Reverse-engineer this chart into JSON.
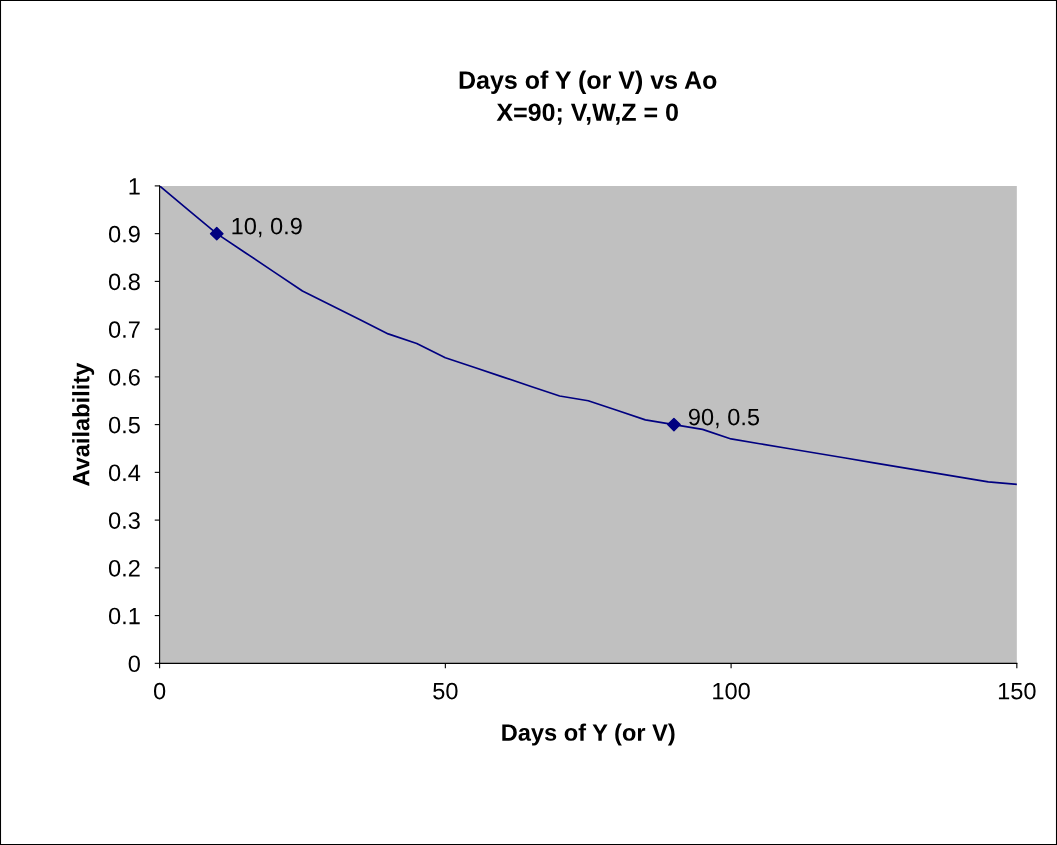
{
  "chart_data": {
    "type": "line",
    "title": "Days of Y (or V) vs Ao",
    "subtitle": "X=90; V,W,Z = 0",
    "xlabel": "Days of Y (or V)",
    "ylabel": "Availability",
    "series": [
      {
        "color": "#000080",
        "x": [
          0,
          5,
          10,
          15,
          20,
          25,
          30,
          35,
          40,
          45,
          50,
          55,
          60,
          65,
          70,
          75,
          80,
          85,
          90,
          95,
          100,
          105,
          110,
          115,
          120,
          125,
          130,
          135,
          140,
          145,
          150
        ],
        "values": [
          1,
          0.95,
          0.9,
          0.86,
          0.82,
          0.78,
          0.75,
          0.72,
          0.69,
          0.67,
          0.64,
          0.62,
          0.6,
          0.58,
          0.56,
          0.55,
          0.53,
          0.51,
          0.5,
          0.49,
          0.47,
          0.46,
          0.45,
          0.44,
          0.43,
          0.42,
          0.41,
          0.4,
          0.39,
          0.38,
          0.375
        ]
      },
      {
        "type": "scatter",
        "color": "#000080",
        "marker": "diamond",
        "x": [
          10,
          90
        ],
        "values": [
          0.9,
          0.5
        ]
      }
    ],
    "annotations": [
      {
        "text": "10, 0.9",
        "x": 10,
        "y": 0.9
      },
      {
        "text": "90, 0.5",
        "x": 90,
        "y": 0.5
      }
    ],
    "xlim": [
      0,
      150
    ],
    "xticks": [
      0,
      50,
      100,
      150
    ],
    "ylim": [
      0,
      1
    ],
    "yticks": [
      0,
      0.1,
      0.2,
      0.3,
      0.4,
      0.5,
      0.6,
      0.7,
      0.8,
      0.9,
      1
    ],
    "grid": false,
    "legend": false
  }
}
